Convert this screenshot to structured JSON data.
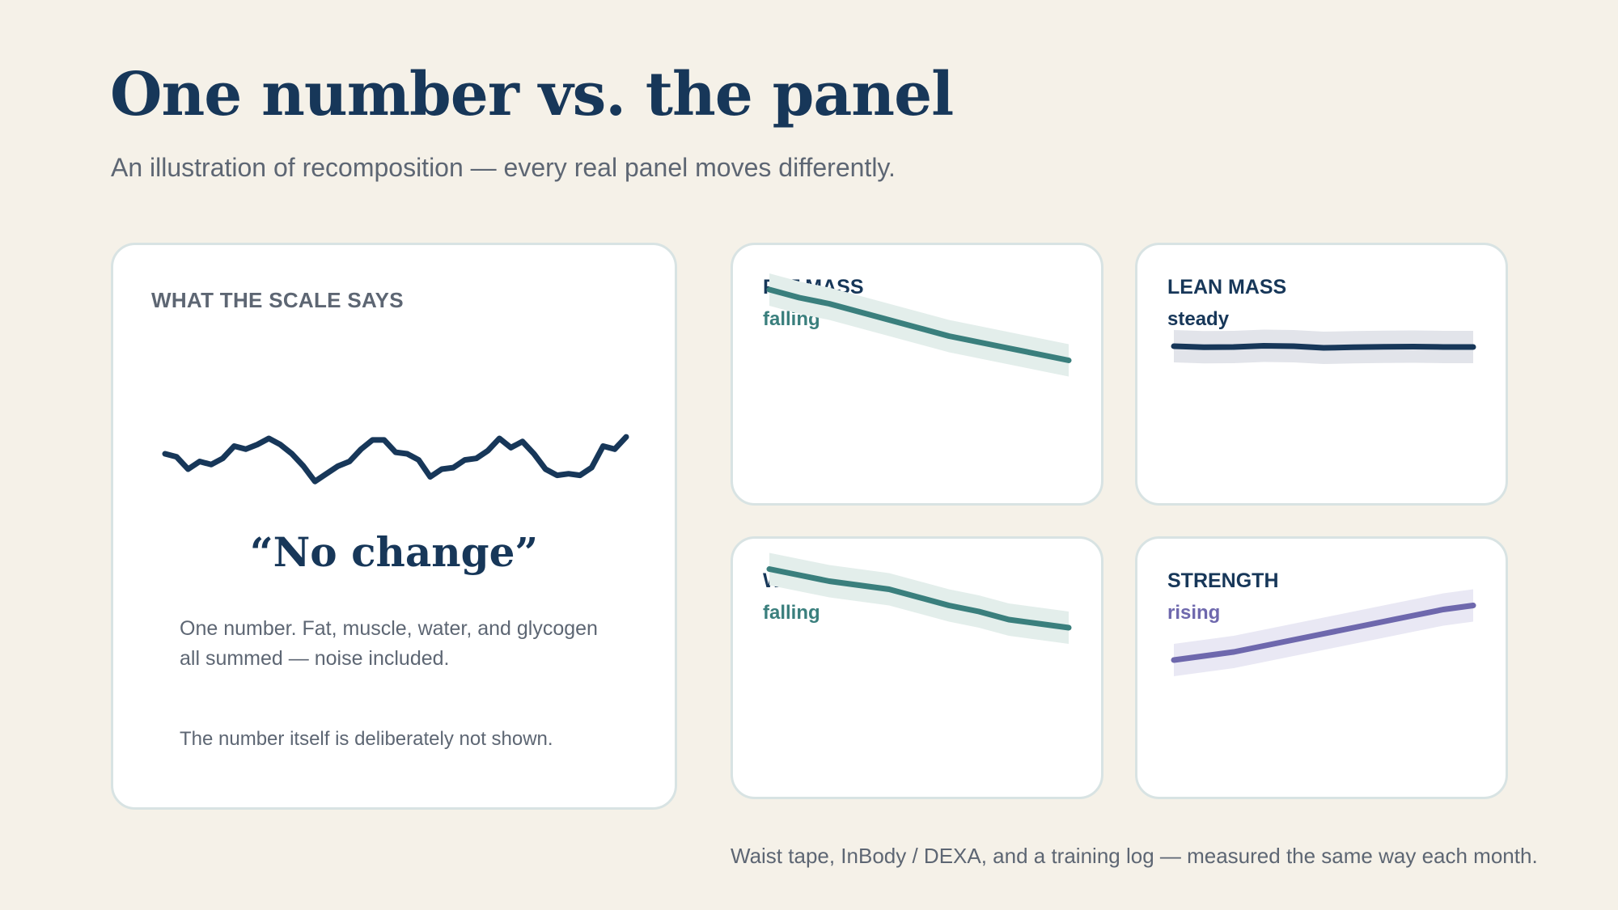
{
  "header": {
    "title": "One number vs. the panel",
    "subtitle": "An illustration of recomposition — every real panel moves differently."
  },
  "scale_card": {
    "heading": "WHAT THE SCALE SAYS",
    "quote": "“No change”",
    "description": "One number. Fat, muscle, water, and glycogen all summed — noise included.",
    "note": "The number itself is deliberately not shown.",
    "line_color": "#173759",
    "series": [
      50,
      48,
      40,
      45,
      43,
      47,
      55,
      53,
      56,
      60,
      56,
      50,
      42,
      32,
      37,
      42,
      45,
      53,
      59,
      59,
      51,
      50,
      46,
      35,
      40,
      41,
      46,
      47,
      52,
      60,
      54,
      58,
      50,
      40,
      36,
      37,
      36,
      41,
      55,
      53,
      61
    ]
  },
  "metrics": [
    {
      "title": "FAT MASS",
      "status": "falling",
      "color": "#3a7f7d",
      "band_color": "#e3eeeb",
      "series": [
        78,
        74,
        71,
        67,
        63,
        59,
        55,
        52,
        49,
        46,
        43
      ]
    },
    {
      "title": "LEAN MASS",
      "status": "steady",
      "color": "#173759",
      "band_color": "#e2e4ea",
      "series": [
        50,
        49.5,
        49.6,
        50.2,
        50,
        49.2,
        49.5,
        49.7,
        49.8,
        49.6,
        49.6
      ]
    },
    {
      "title": "WAIST",
      "status": "falling",
      "color": "#3a7f7d",
      "band_color": "#e3eeeb",
      "series": [
        85,
        82,
        79,
        77,
        75,
        71,
        67,
        64,
        60,
        58,
        56
      ]
    },
    {
      "title": "STRENGTH",
      "status": "rising",
      "color": "#6e68ad",
      "band_color": "#e9e8f4",
      "series": [
        40,
        42,
        44,
        47,
        50,
        53,
        56,
        59,
        62,
        65,
        67
      ]
    }
  ],
  "footer": {
    "note": "Waist tape, InBody / DEXA, and a training log — measured the same way each month."
  }
}
